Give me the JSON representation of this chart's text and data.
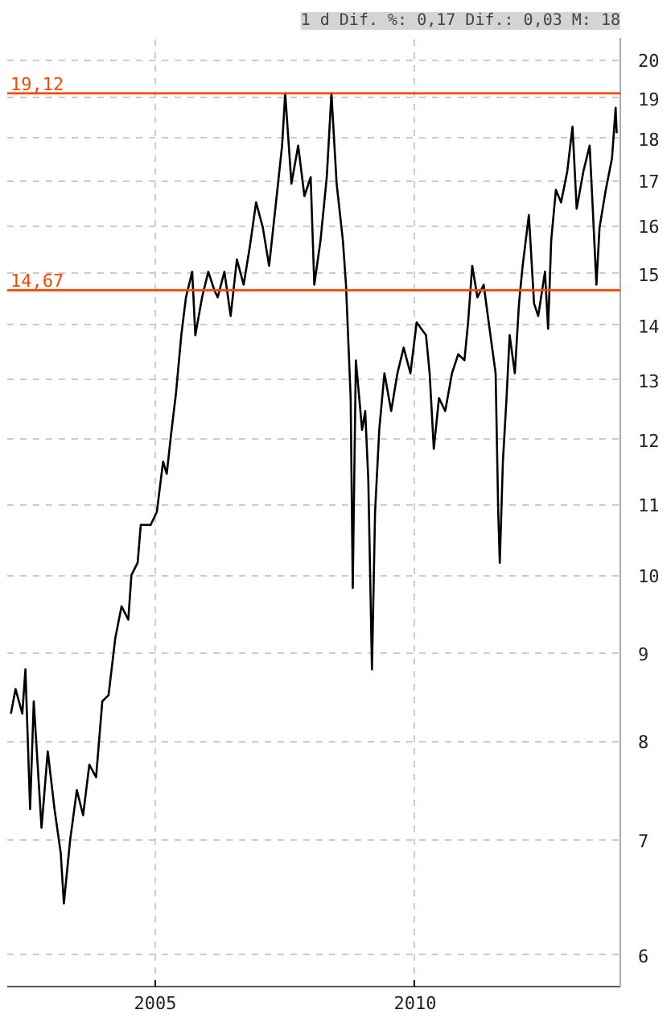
{
  "chart_data": {
    "type": "line",
    "subtitle": "1 d Dif. %: 0,17 Dif.: 0,03 M: 18",
    "x": [
      2002.22,
      2002.31,
      2002.44,
      2002.5,
      2002.59,
      2002.66,
      2002.75,
      2002.81,
      2002.93,
      2003.06,
      2003.18,
      2003.24,
      2003.36,
      2003.49,
      2003.61,
      2003.73,
      2003.86,
      2003.98,
      2004.1,
      2004.23,
      2004.35,
      2004.48,
      2004.54,
      2004.66,
      2004.72,
      2004.91,
      2005.03,
      2005.15,
      2005.22,
      2005.3,
      2005.4,
      2005.5,
      2005.59,
      2005.71,
      2005.77,
      2005.9,
      2006.02,
      2006.14,
      2006.2,
      2006.33,
      2006.45,
      2006.57,
      2006.7,
      2006.82,
      2006.94,
      2007.07,
      2007.19,
      2007.31,
      2007.44,
      2007.5,
      2007.62,
      2007.75,
      2007.87,
      2007.99,
      2008.06,
      2008.18,
      2008.3,
      2008.39,
      2008.49,
      2008.61,
      2008.67,
      2008.76,
      2008.8,
      2008.86,
      2008.98,
      2009.04,
      2009.1,
      2009.17,
      2009.23,
      2009.31,
      2009.41,
      2009.54,
      2009.66,
      2009.78,
      2009.91,
      2010.03,
      2010.21,
      2010.28,
      2010.36,
      2010.46,
      2010.58,
      2010.71,
      2010.83,
      2010.95,
      2011.02,
      2011.1,
      2011.2,
      2011.32,
      2011.45,
      2011.55,
      2011.6,
      2011.63,
      2011.69,
      2011.76,
      2011.82,
      2011.92,
      2012.0,
      2012.07,
      2012.19,
      2012.29,
      2012.37,
      2012.5,
      2012.56,
      2012.62,
      2012.71,
      2012.81,
      2012.93,
      2013.03,
      2013.11,
      2013.24,
      2013.36,
      2013.42,
      2013.49,
      2013.55,
      2013.67,
      2013.79,
      2013.86,
      2013.88
    ],
    "series": [
      {
        "color": "#000000",
        "values": [
          8.3,
          8.58,
          8.3,
          8.81,
          7.3,
          8.44,
          7.62,
          7.12,
          7.89,
          7.3,
          6.88,
          6.43,
          7.0,
          7.49,
          7.24,
          7.75,
          7.62,
          8.44,
          8.51,
          9.19,
          9.59,
          9.42,
          10.0,
          10.17,
          10.7,
          10.7,
          10.89,
          11.65,
          11.46,
          12.06,
          12.79,
          13.81,
          14.53,
          15.04,
          13.81,
          14.53,
          15.04,
          14.66,
          14.53,
          15.04,
          14.17,
          15.29,
          14.78,
          15.56,
          16.51,
          15.96,
          15.16,
          16.37,
          17.82,
          19.12,
          16.93,
          17.82,
          16.65,
          17.08,
          14.78,
          15.69,
          17.08,
          19.12,
          16.93,
          15.69,
          14.78,
          12.69,
          9.83,
          13.35,
          12.16,
          12.47,
          11.36,
          8.81,
          10.89,
          12.16,
          13.12,
          12.47,
          13.12,
          13.58,
          13.12,
          14.05,
          13.81,
          13.12,
          11.85,
          12.69,
          12.47,
          13.12,
          13.46,
          13.35,
          14.05,
          15.16,
          14.53,
          14.78,
          13.81,
          13.12,
          10.89,
          10.17,
          11.65,
          12.69,
          13.81,
          13.12,
          14.41,
          15.16,
          16.23,
          14.41,
          14.17,
          15.04,
          13.93,
          15.69,
          16.79,
          16.51,
          17.22,
          18.28,
          16.37,
          17.22,
          17.82,
          16.37,
          14.78,
          15.96,
          16.79,
          17.52,
          18.75,
          18.12
        ]
      }
    ],
    "log": true,
    "xlim": [
      2002.15,
      2013.95
    ],
    "xticks": [
      2005,
      2010
    ],
    "ylim": [
      5.75,
      20.6
    ],
    "yticks": [
      6,
      7,
      8,
      9,
      10,
      11,
      12,
      13,
      14,
      15,
      16,
      17,
      18,
      19,
      20
    ],
    "ref_lines": [
      {
        "axis": "y",
        "value": 19.12,
        "label": "19,12",
        "color": "#ff4500"
      },
      {
        "axis": "y",
        "value": 14.67,
        "label": "14,67",
        "color": "#ff4500"
      }
    ],
    "grid": true,
    "line_style": "solid",
    "marker": "none"
  }
}
